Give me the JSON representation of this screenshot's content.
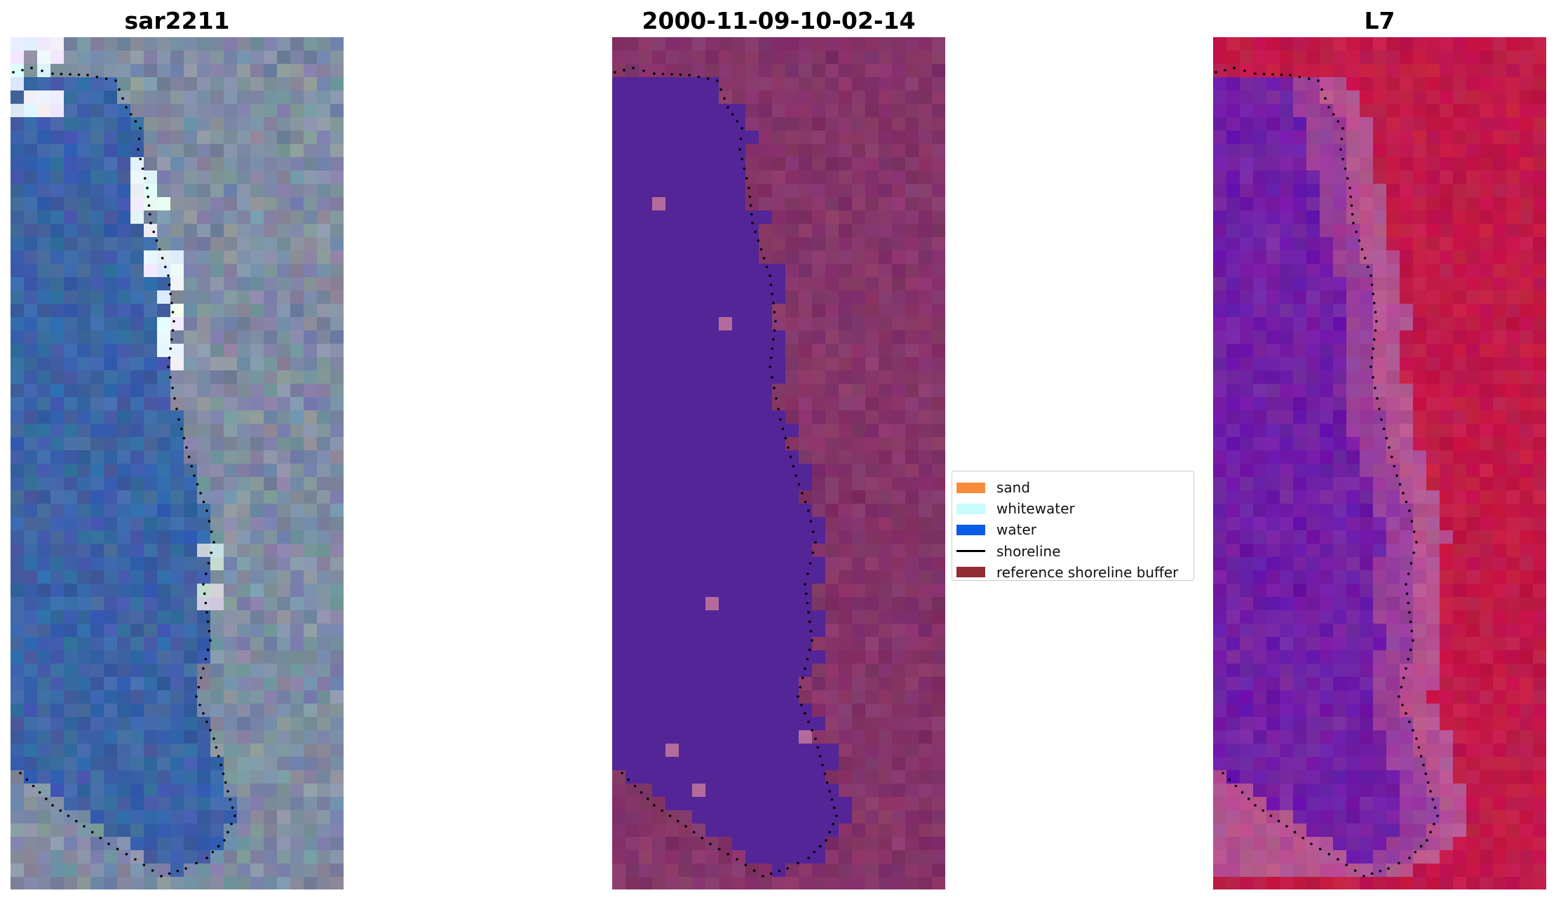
{
  "panels": [
    {
      "title": "sar2211",
      "colors": [
        "#3c64a6",
        "#8a94a6",
        "#9aa2ad",
        "#e8f4fb",
        "#5c7799"
      ],
      "shoreline_color": "#000000"
    },
    {
      "title": "2000-11-09-10-02-14",
      "colors": [
        "#542597",
        "#8d3b6f",
        "#7b2e62",
        "#b26b9c"
      ],
      "shoreline_color": "#000000"
    },
    {
      "title": "L7",
      "colors": [
        "#7a29a5",
        "#c11a49",
        "#b55391",
        "#5b0aa8"
      ],
      "shoreline_color": "#000000"
    }
  ],
  "legend": {
    "items": [
      {
        "label": "sand",
        "color": "#f98b3d",
        "type": "patch"
      },
      {
        "label": "whitewater",
        "color": "#c9fbfb",
        "type": "patch"
      },
      {
        "label": "water",
        "color": "#0a5be8",
        "type": "patch"
      },
      {
        "label": "shoreline",
        "color": "#000000",
        "type": "line"
      },
      {
        "label": "reference shoreline buffer",
        "color": "#912d34",
        "type": "patch"
      }
    ]
  }
}
